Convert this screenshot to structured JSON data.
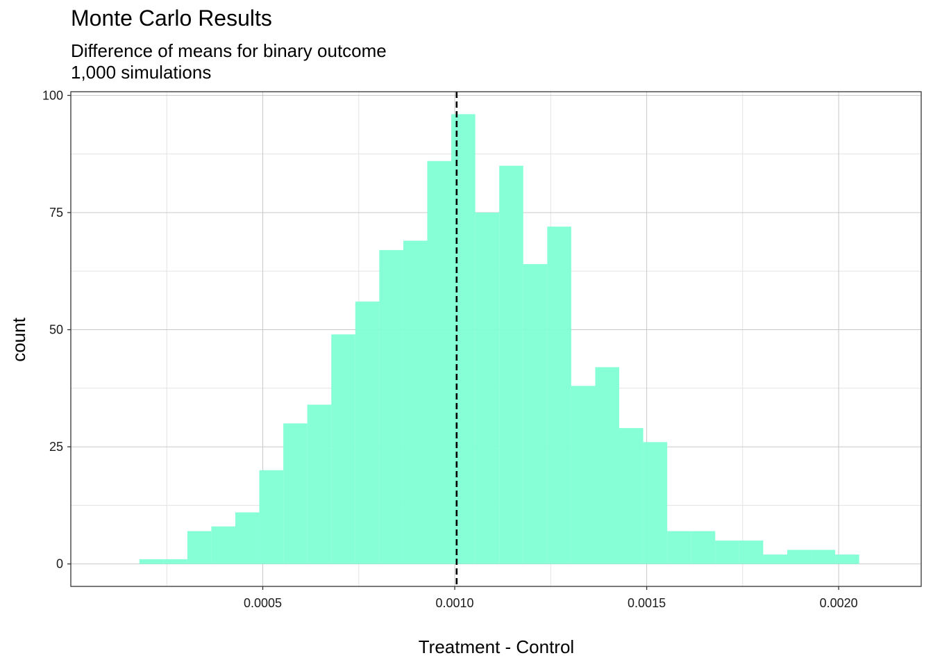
{
  "chart_data": {
    "type": "bar",
    "title": "Monte Carlo Results",
    "subtitle_lines": [
      "Difference of means for binary outcome",
      "1,000 simulations"
    ],
    "xlabel": "Treatment - Control",
    "ylabel": "count",
    "x_ticks": [
      {
        "value": 0.0005,
        "label": "0.0005"
      },
      {
        "value": 0.001,
        "label": "0.0010"
      },
      {
        "value": 0.0015,
        "label": "0.0015"
      },
      {
        "value": 0.002,
        "label": "0.0020"
      }
    ],
    "y_ticks": [
      {
        "value": 0,
        "label": "0"
      },
      {
        "value": 25,
        "label": "25"
      },
      {
        "value": 50,
        "label": "50"
      },
      {
        "value": 75,
        "label": "75"
      },
      {
        "value": 100,
        "label": "100"
      }
    ],
    "xlim": [
      0.0,
      0.002215
    ],
    "ylim": [
      -4.8,
      100.8
    ],
    "bin_width": 6.25e-05,
    "bins": [
      {
        "x0": 0.0001785,
        "count": 1
      },
      {
        "x0": 0.000241,
        "count": 1
      },
      {
        "x0": 0.0003035,
        "count": 7
      },
      {
        "x0": 0.000366,
        "count": 8
      },
      {
        "x0": 0.0004285,
        "count": 11
      },
      {
        "x0": 0.000491,
        "count": 20
      },
      {
        "x0": 0.0005535,
        "count": 30
      },
      {
        "x0": 0.000616,
        "count": 34
      },
      {
        "x0": 0.0006785,
        "count": 49
      },
      {
        "x0": 0.000741,
        "count": 56
      },
      {
        "x0": 0.0008035,
        "count": 67
      },
      {
        "x0": 0.000866,
        "count": 69
      },
      {
        "x0": 0.0009285,
        "count": 86
      },
      {
        "x0": 0.000991,
        "count": 96
      },
      {
        "x0": 0.0010535,
        "count": 75
      },
      {
        "x0": 0.001116,
        "count": 85
      },
      {
        "x0": 0.0011785,
        "count": 64
      },
      {
        "x0": 0.001241,
        "count": 72
      },
      {
        "x0": 0.0013035,
        "count": 38
      },
      {
        "x0": 0.001366,
        "count": 42
      },
      {
        "x0": 0.0014285,
        "count": 29
      },
      {
        "x0": 0.001491,
        "count": 26
      },
      {
        "x0": 0.0015535,
        "count": 7
      },
      {
        "x0": 0.001616,
        "count": 7
      },
      {
        "x0": 0.0016785,
        "count": 5
      },
      {
        "x0": 0.001741,
        "count": 5
      },
      {
        "x0": 0.0018035,
        "count": 2
      },
      {
        "x0": 0.001866,
        "count": 3
      },
      {
        "x0": 0.0019285,
        "count": 3
      },
      {
        "x0": 0.001991,
        "count": 2
      }
    ],
    "reference_line": {
      "x": 0.001005,
      "style": "dashed"
    },
    "fill_color": "#7fffd4",
    "grid": true
  }
}
